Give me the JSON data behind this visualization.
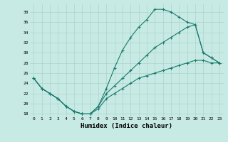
{
  "xlabel": "Humidex (Indice chaleur)",
  "background_color": "#c8eae4",
  "line_color": "#1a7a6e",
  "grid_color": "#aad4cc",
  "xlim": [
    -0.5,
    23.5
  ],
  "ylim": [
    17.5,
    39.5
  ],
  "yticks": [
    18,
    20,
    22,
    24,
    26,
    28,
    30,
    32,
    34,
    36,
    38
  ],
  "xticks": [
    0,
    1,
    2,
    3,
    4,
    5,
    6,
    7,
    8,
    9,
    10,
    11,
    12,
    13,
    14,
    15,
    16,
    17,
    18,
    19,
    20,
    21,
    22,
    23
  ],
  "line1_x": [
    0,
    1,
    2,
    3,
    4,
    5,
    6,
    7,
    8,
    9,
    10,
    11,
    12,
    13,
    14,
    15,
    16,
    17,
    18,
    19,
    20,
    21,
    22,
    23
  ],
  "line1_y": [
    25,
    23,
    22,
    21,
    19.5,
    18.5,
    18,
    18,
    19.5,
    23,
    27,
    30.5,
    33,
    35,
    36.5,
    38.5,
    38.5,
    38,
    37,
    36,
    35.5,
    30,
    29,
    28
  ],
  "line2_x": [
    0,
    1,
    2,
    3,
    4,
    5,
    6,
    7,
    8,
    9,
    10,
    11,
    12,
    13,
    14,
    15,
    16,
    17,
    18,
    19,
    20,
    21,
    22,
    23
  ],
  "line2_y": [
    25,
    23,
    22,
    21,
    19.5,
    18.5,
    18,
    18,
    19.5,
    22,
    23.5,
    25,
    26.5,
    28,
    29.5,
    31,
    32,
    33,
    34,
    35,
    35.5,
    30,
    29,
    28
  ],
  "line3_x": [
    0,
    1,
    2,
    3,
    4,
    5,
    6,
    7,
    8,
    9,
    10,
    11,
    12,
    13,
    14,
    15,
    16,
    17,
    18,
    19,
    20,
    21,
    22,
    23
  ],
  "line3_y": [
    25,
    23,
    22,
    21,
    19.5,
    18.5,
    18,
    18,
    19,
    21,
    22,
    23,
    24,
    25,
    25.5,
    26,
    26.5,
    27,
    27.5,
    28,
    28.5,
    28.5,
    28,
    28
  ]
}
